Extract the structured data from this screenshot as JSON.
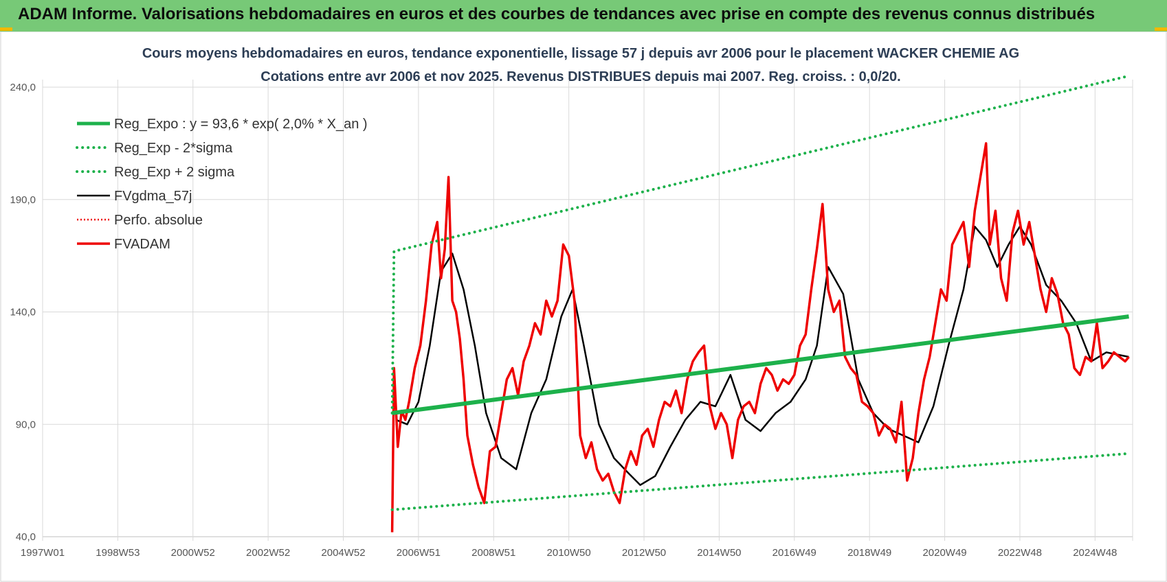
{
  "banner": {
    "title": "ADAM Informe. Valorisations hebdomadaires en euros et des courbes de tendances avec prise en compte des revenus connus distribués"
  },
  "colors": {
    "banner_bg": "#77c977",
    "trend_green": "#1db14b",
    "series_red": "#ee0000",
    "series_black": "#000000",
    "title_text": "#2d3e55",
    "grid": "#d9d9d9"
  },
  "chart_data": {
    "type": "line",
    "title": "Cours moyens hebdomadaires en euros, tendance exponentielle, lissage 57 j depuis avr 2006 pour le placement WACKER CHEMIE AG",
    "subtitle": "Cotations entre avr 2006 et nov 2025. Revenus DISTRIBUES depuis mai 2007. Reg. croiss. : 0,0/20.",
    "xlabel": "",
    "ylabel": "",
    "ylim": [
      40,
      240
    ],
    "yticks": [
      "240,0",
      "190,0",
      "140,0",
      "90,0",
      "40,0"
    ],
    "ytick_values": [
      240,
      190,
      140,
      90,
      40
    ],
    "xlim": [
      1997.0,
      2026.0
    ],
    "xticks": [
      "1997W01",
      "1998W53",
      "2000W52",
      "2002W52",
      "2004W52",
      "2006W51",
      "2008W51",
      "2010W50",
      "2012W50",
      "2014W50",
      "2016W49",
      "2018W49",
      "2020W49",
      "2022W48",
      "2024W48"
    ],
    "xtick_years": [
      1997.0,
      1999.0,
      2001.0,
      2003.0,
      2005.0,
      2007.0,
      2009.0,
      2011.0,
      2013.0,
      2015.0,
      2017.0,
      2019.0,
      2021.0,
      2023.0,
      2025.0
    ],
    "grid": true,
    "legend_position": "top-left",
    "series": [
      {
        "name": "Reg_Expo : y = 93,6 * exp( 2,0% *  X_an )",
        "style": "solid",
        "color": "#1db14b",
        "x": [
          2006.3,
          2025.9
        ],
        "y": [
          95,
          138
        ]
      },
      {
        "name": "Reg_Exp - 2*sigma",
        "style": "dotted",
        "color": "#1db14b",
        "x": [
          2006.3,
          2025.9
        ],
        "y": [
          52,
          77
        ]
      },
      {
        "name": "Reg_Exp + 2 sigma",
        "style": "dotted",
        "color": "#1db14b",
        "x": [
          2006.3,
          2006.35,
          2025.9
        ],
        "y": [
          95,
          167,
          245
        ]
      },
      {
        "name": "FVgdma_57j",
        "style": "solid",
        "color": "#000000",
        "x": [
          2006.4,
          2006.7,
          2007.0,
          2007.3,
          2007.6,
          2007.9,
          2008.2,
          2008.5,
          2008.8,
          2009.2,
          2009.6,
          2010.0,
          2010.4,
          2010.8,
          2011.1,
          2011.4,
          2011.8,
          2012.2,
          2012.6,
          2012.9,
          2013.3,
          2013.7,
          2014.1,
          2014.5,
          2014.9,
          2015.3,
          2015.7,
          2016.1,
          2016.5,
          2016.9,
          2017.3,
          2017.6,
          2017.9,
          2018.3,
          2018.7,
          2019.1,
          2019.5,
          2019.9,
          2020.3,
          2020.7,
          2021.1,
          2021.5,
          2021.8,
          2022.1,
          2022.4,
          2022.7,
          2023.0,
          2023.3,
          2023.7,
          2024.1,
          2024.5,
          2024.9,
          2025.3,
          2025.9
        ],
        "y": [
          92,
          90,
          100,
          125,
          158,
          166,
          150,
          125,
          95,
          75,
          70,
          95,
          110,
          138,
          150,
          125,
          90,
          75,
          68,
          63,
          67,
          80,
          92,
          100,
          98,
          112,
          92,
          87,
          95,
          100,
          110,
          125,
          160,
          148,
          110,
          95,
          88,
          85,
          82,
          98,
          125,
          150,
          178,
          172,
          160,
          170,
          178,
          170,
          152,
          145,
          135,
          118,
          122,
          120
        ]
      },
      {
        "name": "Perfo. absolue",
        "style": "dotted",
        "color": "#ee0000",
        "x": [],
        "y": []
      },
      {
        "name": "FVADAM",
        "style": "solid",
        "color": "#ee0000",
        "x": [
          2006.3,
          2006.35,
          2006.45,
          2006.55,
          2006.65,
          2006.75,
          2006.9,
          2007.05,
          2007.2,
          2007.35,
          2007.5,
          2007.6,
          2007.7,
          2007.8,
          2007.9,
          2008.0,
          2008.1,
          2008.2,
          2008.3,
          2008.45,
          2008.6,
          2008.75,
          2008.9,
          2009.05,
          2009.2,
          2009.35,
          2009.5,
          2009.65,
          2009.8,
          2009.95,
          2010.1,
          2010.25,
          2010.4,
          2010.55,
          2010.7,
          2010.85,
          2011.0,
          2011.15,
          2011.3,
          2011.45,
          2011.6,
          2011.75,
          2011.9,
          2012.05,
          2012.2,
          2012.35,
          2012.5,
          2012.65,
          2012.8,
          2012.95,
          2013.1,
          2013.25,
          2013.4,
          2013.55,
          2013.7,
          2013.85,
          2014.0,
          2014.15,
          2014.3,
          2014.45,
          2014.6,
          2014.75,
          2014.9,
          2015.05,
          2015.2,
          2015.35,
          2015.5,
          2015.65,
          2015.8,
          2015.95,
          2016.1,
          2016.25,
          2016.4,
          2016.55,
          2016.7,
          2016.85,
          2017.0,
          2017.15,
          2017.3,
          2017.45,
          2017.6,
          2017.75,
          2017.9,
          2018.05,
          2018.2,
          2018.35,
          2018.5,
          2018.65,
          2018.8,
          2018.95,
          2019.1,
          2019.25,
          2019.4,
          2019.55,
          2019.7,
          2019.85,
          2020.0,
          2020.15,
          2020.3,
          2020.45,
          2020.6,
          2020.75,
          2020.9,
          2021.05,
          2021.2,
          2021.35,
          2021.5,
          2021.65,
          2021.8,
          2021.95,
          2022.1,
          2022.2,
          2022.35,
          2022.5,
          2022.65,
          2022.8,
          2022.95,
          2023.1,
          2023.25,
          2023.4,
          2023.55,
          2023.7,
          2023.85,
          2024.0,
          2024.15,
          2024.3,
          2024.45,
          2024.6,
          2024.75,
          2024.9,
          2025.05,
          2025.2,
          2025.35,
          2025.5,
          2025.65,
          2025.8,
          2025.9
        ],
        "y": [
          42,
          115,
          80,
          96,
          92,
          100,
          115,
          125,
          145,
          170,
          180,
          155,
          168,
          200,
          145,
          140,
          128,
          110,
          85,
          72,
          62,
          55,
          78,
          80,
          95,
          110,
          115,
          103,
          118,
          125,
          135,
          130,
          145,
          138,
          145,
          170,
          165,
          145,
          85,
          75,
          82,
          70,
          65,
          68,
          60,
          55,
          70,
          78,
          72,
          85,
          88,
          80,
          92,
          100,
          98,
          105,
          95,
          110,
          118,
          122,
          125,
          98,
          88,
          95,
          90,
          75,
          92,
          98,
          100,
          95,
          108,
          115,
          112,
          105,
          110,
          108,
          112,
          125,
          130,
          150,
          168,
          188,
          150,
          140,
          145,
          120,
          115,
          112,
          100,
          98,
          95,
          85,
          90,
          88,
          82,
          100,
          65,
          75,
          95,
          110,
          120,
          135,
          150,
          145,
          170,
          175,
          180,
          160,
          185,
          200,
          215,
          170,
          185,
          155,
          145,
          175,
          185,
          170,
          180,
          165,
          150,
          140,
          155,
          148,
          135,
          130,
          115,
          112,
          120,
          118,
          135,
          115,
          118,
          122,
          120,
          118,
          120
        ]
      }
    ]
  }
}
